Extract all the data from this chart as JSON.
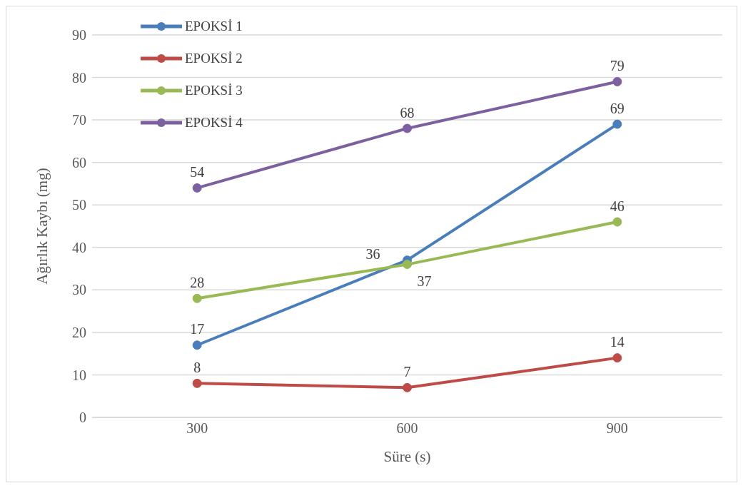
{
  "chart_data": {
    "type": "line",
    "xlabel": "Süre (s)",
    "ylabel": "Ağırlık Kaybı (mg)",
    "categories": [
      "300",
      "600",
      "900"
    ],
    "series": [
      {
        "name": "EPOKSİ 1",
        "color": "#4a7ebb",
        "values": [
          17,
          37,
          69
        ]
      },
      {
        "name": "EPOKSİ 2",
        "color": "#be4b48",
        "values": [
          8,
          7,
          14
        ]
      },
      {
        "name": "EPOKSİ 3",
        "color": "#98b954",
        "values": [
          28,
          36,
          46
        ]
      },
      {
        "name": "EPOKSİ 4",
        "color": "#7d60a0",
        "values": [
          54,
          68,
          79
        ]
      }
    ],
    "ylim": [
      0,
      90
    ],
    "yticks": [
      0,
      10,
      20,
      30,
      40,
      50,
      60,
      70,
      80,
      90
    ],
    "grid": "y",
    "legend": "top left",
    "marker": "circle",
    "line_style": "solid",
    "data_labels": true
  }
}
